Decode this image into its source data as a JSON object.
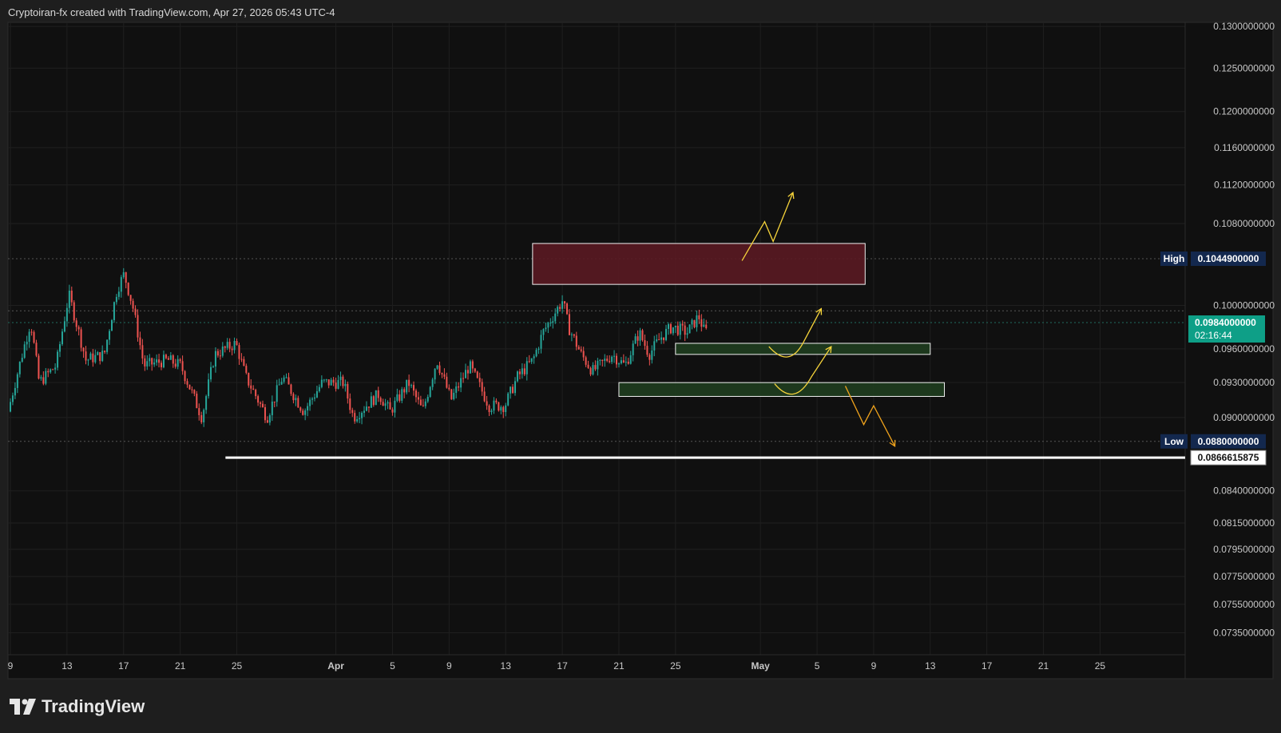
{
  "header": {
    "caption": "Cryptoiran-fx created with TradingView.com, Apr 27, 2026 05:43 UTC-4"
  },
  "brand": {
    "name": "TradingView"
  },
  "colors": {
    "background": "#101010",
    "grid": "#1f1f1f",
    "axis_text": "#c8c8c8",
    "up": "#26a69a",
    "down": "#ef5350",
    "resistance_zone": "#5a1a22",
    "support_zone": "#1f3d1f",
    "projection_up": "#f5d33a",
    "projection_down": "#f0a31c",
    "price_label": "#0e9f87",
    "hl_label": "#13284e"
  },
  "chart_data": {
    "type": "candlestick",
    "title": "",
    "y_scale": "log",
    "ylim": [
      0.072,
      0.1305
    ],
    "x_ticks": [
      {
        "day": 0,
        "label": "9"
      },
      {
        "day": 4,
        "label": "13"
      },
      {
        "day": 8,
        "label": "17"
      },
      {
        "day": 12,
        "label": "21"
      },
      {
        "day": 16,
        "label": "25"
      },
      {
        "day": 23,
        "label": "Apr"
      },
      {
        "day": 27,
        "label": "5"
      },
      {
        "day": 31,
        "label": "9"
      },
      {
        "day": 35,
        "label": "13"
      },
      {
        "day": 39,
        "label": "17"
      },
      {
        "day": 43,
        "label": "21"
      },
      {
        "day": 47,
        "label": "25"
      },
      {
        "day": 53,
        "label": "May"
      },
      {
        "day": 57,
        "label": "5"
      },
      {
        "day": 61,
        "label": "9"
      },
      {
        "day": 65,
        "label": "13"
      },
      {
        "day": 69,
        "label": "17"
      },
      {
        "day": 73,
        "label": "21"
      },
      {
        "day": 77,
        "label": "25"
      }
    ],
    "y_ticks": [
      "0.1300000000",
      "0.1250000000",
      "0.1200000000",
      "0.1160000000",
      "0.1120000000",
      "0.1080000000",
      "0.1000000000",
      "0.0960000000",
      "0.0930000000",
      "0.0900000000",
      "0.0840000000",
      "0.0815000000",
      "0.0795000000",
      "0.0775000000",
      "0.0755000000",
      "0.0735000000"
    ],
    "y_tick_values": [
      0.13,
      0.125,
      0.12,
      0.116,
      0.112,
      0.108,
      0.1,
      0.096,
      0.093,
      0.09,
      0.084,
      0.0815,
      0.0795,
      0.0775,
      0.0755,
      0.0735
    ],
    "candle_path": [
      {
        "day": 0,
        "price": 0.0905
      },
      {
        "day": 1.6,
        "price": 0.0985
      },
      {
        "day": 2.2,
        "price": 0.093
      },
      {
        "day": 3.4,
        "price": 0.0945
      },
      {
        "day": 4.3,
        "price": 0.101
      },
      {
        "day": 5.5,
        "price": 0.095
      },
      {
        "day": 6.8,
        "price": 0.0955
      },
      {
        "day": 7.7,
        "price": 0.1015
      },
      {
        "day": 8.2,
        "price": 0.103
      },
      {
        "day": 8.8,
        "price": 0.1
      },
      {
        "day": 9.6,
        "price": 0.0945
      },
      {
        "day": 11.3,
        "price": 0.095
      },
      {
        "day": 12.2,
        "price": 0.0945
      },
      {
        "day": 13.7,
        "price": 0.09
      },
      {
        "day": 14.6,
        "price": 0.0955
      },
      {
        "day": 16.1,
        "price": 0.0965
      },
      {
        "day": 16.8,
        "price": 0.0935
      },
      {
        "day": 18.3,
        "price": 0.09
      },
      {
        "day": 19.4,
        "price": 0.0935
      },
      {
        "day": 20.9,
        "price": 0.0905
      },
      {
        "day": 22.2,
        "price": 0.093
      },
      {
        "day": 23.7,
        "price": 0.093
      },
      {
        "day": 24.4,
        "price": 0.09
      },
      {
        "day": 26.2,
        "price": 0.092
      },
      {
        "day": 27.0,
        "price": 0.0905
      },
      {
        "day": 28.3,
        "price": 0.093
      },
      {
        "day": 29.3,
        "price": 0.0905
      },
      {
        "day": 30.3,
        "price": 0.095
      },
      {
        "day": 31.3,
        "price": 0.0915
      },
      {
        "day": 32.6,
        "price": 0.0945
      },
      {
        "day": 34.0,
        "price": 0.091
      },
      {
        "day": 35.1,
        "price": 0.091
      },
      {
        "day": 36.0,
        "price": 0.0935
      },
      {
        "day": 37.1,
        "price": 0.095
      },
      {
        "day": 37.8,
        "price": 0.0975
      },
      {
        "day": 38.5,
        "price": 0.099
      },
      {
        "day": 39.2,
        "price": 0.1005
      },
      {
        "day": 39.6,
        "price": 0.098
      },
      {
        "day": 40.5,
        "price": 0.0955
      },
      {
        "day": 41.3,
        "price": 0.094
      },
      {
        "day": 41.8,
        "price": 0.0945
      },
      {
        "day": 42.7,
        "price": 0.0955
      },
      {
        "day": 43.6,
        "price": 0.0945
      },
      {
        "day": 44.6,
        "price": 0.0975
      },
      {
        "day": 45.3,
        "price": 0.0955
      },
      {
        "day": 46.1,
        "price": 0.097
      },
      {
        "day": 46.9,
        "price": 0.098
      },
      {
        "day": 48.0,
        "price": 0.0975
      },
      {
        "day": 48.8,
        "price": 0.099
      },
      {
        "day": 49.2,
        "price": 0.0976
      }
    ],
    "levels": {
      "high": {
        "label": "High",
        "value_text": "0.1044900000",
        "value": 0.10449
      },
      "low": {
        "label": "Low",
        "value_text": "0.0880000000",
        "value": 0.088
      },
      "current": {
        "value_text": "0.0984000000",
        "value": 0.0984,
        "countdown": "02:16:44"
      },
      "horizontal_ray": {
        "value_text": "0.0866615875",
        "value": 0.0866615875,
        "from_day": 15.2
      },
      "dotted_lines": [
        0.10449,
        0.0995,
        0.0984,
        0.088
      ]
    },
    "zones": [
      {
        "kind": "resistance",
        "top": 0.106,
        "bottom": 0.102,
        "from_day": 36.9,
        "to_day": 60.4
      },
      {
        "kind": "support",
        "top": 0.0965,
        "bottom": 0.0955,
        "from_day": 47.0,
        "to_day": 65.0
      },
      {
        "kind": "support",
        "top": 0.093,
        "bottom": 0.0918,
        "from_day": 43.0,
        "to_day": 66.0
      }
    ],
    "projections": [
      {
        "kind": "up",
        "points": [
          [
            51.7,
            0.1043
          ],
          [
            53.3,
            0.1082
          ],
          [
            53.9,
            0.1062
          ],
          [
            55.3,
            0.1112
          ]
        ]
      },
      {
        "kind": "up",
        "points": [
          [
            53.6,
            0.0962
          ],
          [
            55.0,
            0.0952
          ],
          [
            56.0,
            0.0965
          ],
          [
            57.3,
            0.0997
          ]
        ]
      },
      {
        "kind": "up",
        "points": [
          [
            54.0,
            0.0929
          ],
          [
            55.4,
            0.0918
          ],
          [
            56.6,
            0.0935
          ],
          [
            58.0,
            0.0962
          ]
        ]
      },
      {
        "kind": "down",
        "points": [
          [
            59.0,
            0.0927
          ],
          [
            60.3,
            0.0894
          ],
          [
            61.0,
            0.091
          ],
          [
            62.5,
            0.0876
          ]
        ]
      }
    ]
  }
}
